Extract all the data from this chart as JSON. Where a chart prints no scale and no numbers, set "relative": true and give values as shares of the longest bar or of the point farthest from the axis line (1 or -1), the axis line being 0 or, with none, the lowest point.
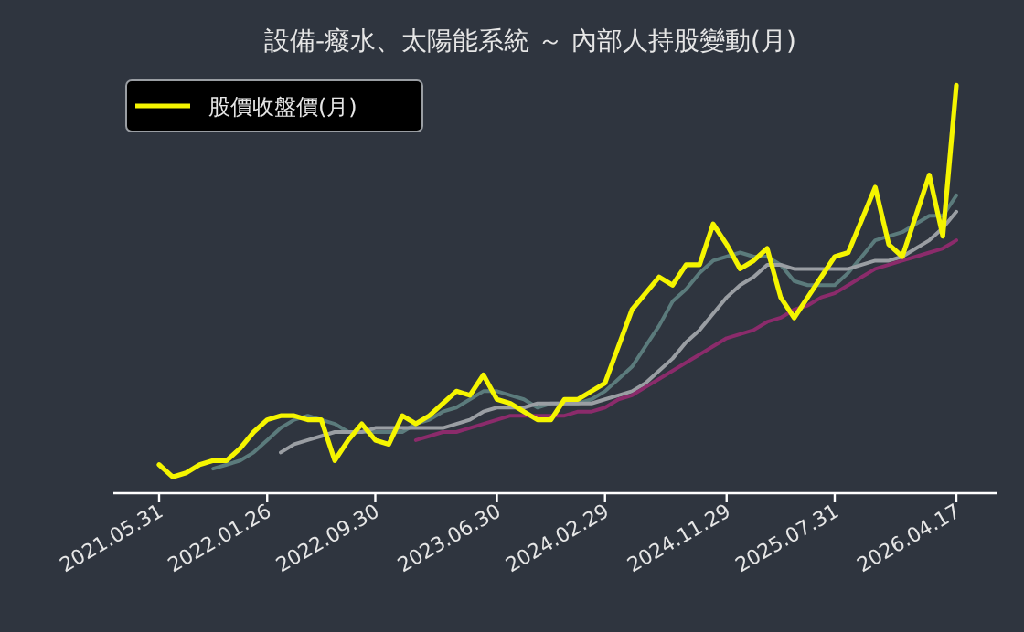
{
  "chart_data": {
    "type": "line",
    "title": "設備-癈水、太陽能系統 ～ 內部人持股變動(月)",
    "relative": true,
    "legend": "top left",
    "grid": false,
    "categories": [
      "2021.05.31",
      null,
      null,
      null,
      null,
      null,
      null,
      null,
      "2022.01.26",
      null,
      null,
      null,
      null,
      null,
      null,
      null,
      "2022.09.30",
      null,
      null,
      null,
      null,
      null,
      null,
      null,
      null,
      "2023.06.30",
      null,
      null,
      null,
      null,
      null,
      null,
      null,
      "2024.02.29",
      null,
      null,
      null,
      null,
      null,
      null,
      null,
      null,
      "2024.11.29",
      null,
      null,
      null,
      null,
      null,
      null,
      null,
      "2025.07.31",
      null,
      null,
      null,
      null,
      null,
      null,
      null,
      null,
      "2026.04.17"
    ],
    "series": [
      {
        "color": "#5b7b7c",
        "values": [
          null,
          null,
          null,
          null,
          0.06,
          0.07,
          0.08,
          0.1,
          0.13,
          0.16,
          0.18,
          0.19,
          0.18,
          0.17,
          0.15,
          0.15,
          0.15,
          0.15,
          0.15,
          0.17,
          0.18,
          0.2,
          0.21,
          0.23,
          0.25,
          0.25,
          0.24,
          0.23,
          0.21,
          0.22,
          0.22,
          0.22,
          0.23,
          0.25,
          0.28,
          0.31,
          0.36,
          0.41,
          0.47,
          0.5,
          0.54,
          0.57,
          0.58,
          0.59,
          0.58,
          0.58,
          0.56,
          0.52,
          0.51,
          0.51,
          0.51,
          0.54,
          0.58,
          0.62,
          0.63,
          0.64,
          0.66,
          0.68,
          0.68,
          0.73
        ]
      },
      {
        "color": "#9a9ea3",
        "values": [
          null,
          null,
          null,
          null,
          null,
          null,
          null,
          null,
          null,
          0.1,
          0.12,
          0.13,
          0.14,
          0.15,
          0.15,
          0.15,
          0.16,
          0.16,
          0.16,
          0.16,
          0.16,
          0.16,
          0.17,
          0.18,
          0.2,
          0.21,
          0.21,
          0.21,
          0.22,
          0.22,
          0.22,
          0.22,
          0.22,
          0.23,
          0.24,
          0.25,
          0.27,
          0.3,
          0.33,
          0.37,
          0.4,
          0.44,
          0.48,
          0.51,
          0.53,
          0.56,
          0.56,
          0.55,
          0.55,
          0.55,
          0.55,
          0.55,
          0.56,
          0.57,
          0.57,
          0.58,
          0.6,
          0.62,
          0.65,
          0.69
        ]
      },
      {
        "color": "#8b2b6b",
        "values": [
          null,
          null,
          null,
          null,
          null,
          null,
          null,
          null,
          null,
          null,
          null,
          null,
          null,
          null,
          null,
          null,
          null,
          null,
          null,
          0.13,
          0.14,
          0.15,
          0.15,
          0.16,
          0.17,
          0.18,
          0.19,
          0.19,
          0.19,
          0.19,
          0.19,
          0.2,
          0.2,
          0.21,
          0.23,
          0.24,
          0.26,
          0.28,
          0.3,
          0.32,
          0.34,
          0.36,
          0.38,
          0.39,
          0.4,
          0.42,
          0.43,
          0.45,
          0.46,
          0.48,
          0.49,
          0.51,
          0.53,
          0.55,
          0.56,
          0.57,
          0.58,
          0.59,
          0.6,
          0.62
        ]
      },
      {
        "name": "股價收盤價(月)",
        "color": "#f5f500",
        "values": [
          0.07,
          0.04,
          0.05,
          0.07,
          0.08,
          0.08,
          0.11,
          0.15,
          0.18,
          0.19,
          0.19,
          0.18,
          0.18,
          0.08,
          0.13,
          0.17,
          0.13,
          0.12,
          0.19,
          0.17,
          0.19,
          0.22,
          0.25,
          0.24,
          0.29,
          0.23,
          0.22,
          0.2,
          0.18,
          0.18,
          0.23,
          0.23,
          0.25,
          0.27,
          0.36,
          0.45,
          0.49,
          0.53,
          0.51,
          0.56,
          0.56,
          0.66,
          0.61,
          0.55,
          0.57,
          0.6,
          0.48,
          0.43,
          0.48,
          0.53,
          0.58,
          0.59,
          0.67,
          0.75,
          0.61,
          0.58,
          0.68,
          0.78,
          0.63,
          1
        ]
      }
    ]
  }
}
